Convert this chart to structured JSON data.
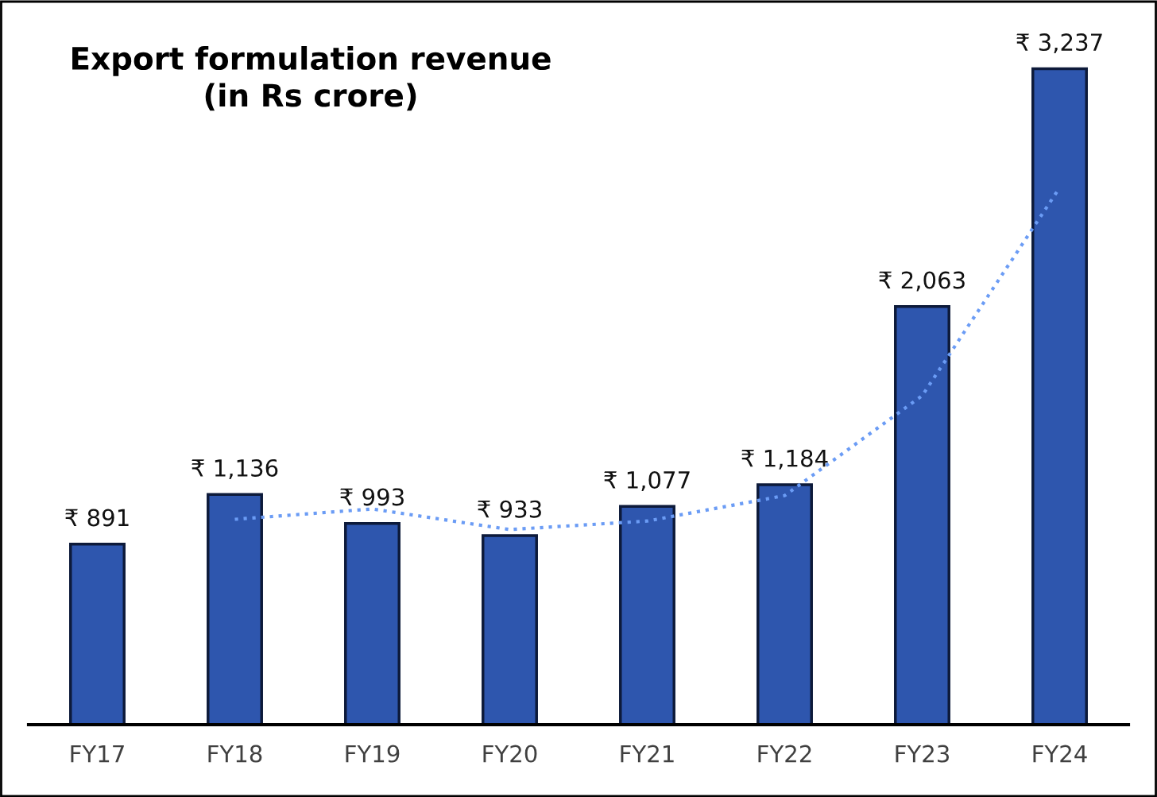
{
  "chart_data": {
    "type": "bar",
    "title": "Export formulation revenue\n(in Rs crore)",
    "categories": [
      "FY17",
      "FY18",
      "FY19",
      "FY20",
      "FY21",
      "FY22",
      "FY23",
      "FY24"
    ],
    "tick_labels": "x",
    "grid": false,
    "series": [
      {
        "color": "#2e56ae",
        "values": [
          891,
          1136,
          993,
          933,
          1077,
          1184,
          2063,
          3237
        ],
        "value_labels": [
          "₹ 891",
          "₹ 1,136",
          "₹ 993",
          "₹ 933",
          "₹ 1,077",
          "₹ 1,184",
          "₹ 2,063",
          "₹ 3,237"
        ]
      },
      {
        "type": "line",
        "color": "#6b9cf5",
        "line_style": "dotted",
        "marker": "none",
        "values": [
          null,
          1013.5,
          1064.5,
          963,
          1005,
          1130.5,
          1623.5,
          2650
        ]
      }
    ]
  }
}
